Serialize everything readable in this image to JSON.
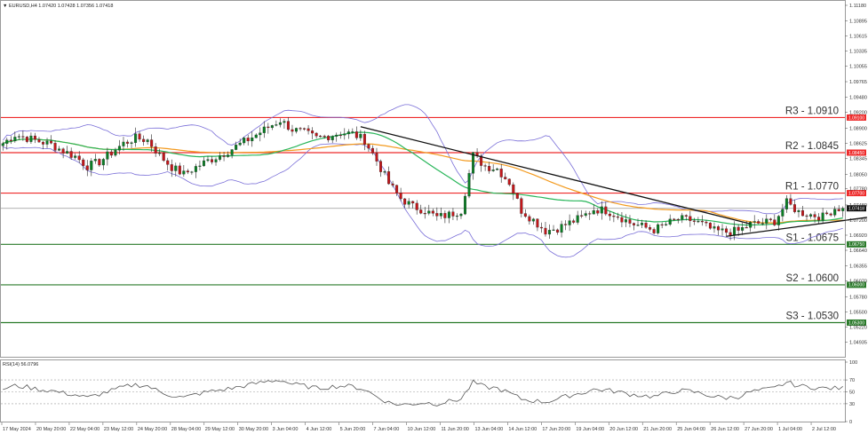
{
  "chart_header": {
    "triangle": "▼",
    "text": "EURUSD,H4  1.07420 1.07428 1.07356 1.07418"
  },
  "rsi_header": {
    "text": "RSI(14) 56.0796"
  },
  "colors": {
    "bull": "#0a7f25",
    "bear": "#c3161a",
    "resistance": "#ee2a2a",
    "support": "#2a7a2a",
    "bollinger": "#7a6fd8",
    "ma_fast": "#29b65a",
    "ma_slow": "#f39a1e",
    "trendline": "#111111",
    "current_price": "#999999",
    "rsi_line": "#555555"
  },
  "chart_data": [
    {
      "type": "candlestick",
      "symbol": "EURUSD",
      "timeframe": "H4",
      "ylim": [
        1.0465,
        1.1118
      ],
      "y_ticks": [
        "1.11180",
        "1.10895",
        "1.10615",
        "1.10335",
        "1.10055",
        "1.09765",
        "1.09480",
        "1.09200",
        "1.08900",
        "1.08625",
        "1.08345",
        "1.08050",
        "1.07780",
        "1.07480",
        "1.07200",
        "1.06920",
        "1.06640",
        "1.06355",
        "1.06070",
        "1.05780",
        "1.05500",
        "1.05220",
        "1.04935",
        "1.04650"
      ],
      "x_labels": [
        "17 May 2024",
        "20 May 20:00",
        "22 May 04:00",
        "23 May 12:00",
        "24 May 20:00",
        "28 May 04:00",
        "29 May 12:00",
        "30 May 20:00",
        "3 Jun 04:00",
        "4 Jun 12:00",
        "5 Jun 20:00",
        "7 Jun 04:00",
        "10 Jun 12:00",
        "11 Jun 20:00",
        "13 Jun 04:00",
        "14 Jun 12:00",
        "17 Jun 20:00",
        "19 Jun 04:00",
        "20 Jun 12:00",
        "21 Jun 20:00",
        "25 Jun 04:00",
        "26 Jun 12:00",
        "27 Jun 20:00",
        "1 Jul 04:00",
        "2 Jul 12:00"
      ],
      "levels": [
        {
          "name": "R3",
          "label": "R3 - 1.0910",
          "price": 1.091,
          "badge": "1.09100",
          "kind": "resistance"
        },
        {
          "name": "R2",
          "label": "R2 - 1.0845",
          "price": 1.0845,
          "badge": "1.08450",
          "kind": "resistance"
        },
        {
          "name": "R1",
          "label": "R1 - 1.0770",
          "price": 1.077,
          "badge": "1.07700",
          "kind": "resistance"
        },
        {
          "name": "S1",
          "label": "S1 - 1.0675",
          "price": 1.0675,
          "badge": "1.06750",
          "kind": "support"
        },
        {
          "name": "S2",
          "label": "S2 - 1.0600",
          "price": 1.06,
          "badge": "1.06000",
          "kind": "support"
        },
        {
          "name": "S3",
          "label": "S3 - 1.0530",
          "price": 1.053,
          "badge": "1.05300",
          "kind": "support"
        }
      ],
      "current_price": {
        "price": 1.07418,
        "badge": "1.07418"
      },
      "close_path": [
        [
          0,
          1.0862
        ],
        [
          3,
          1.0878
        ],
        [
          6,
          1.0872
        ],
        [
          9,
          1.0866
        ],
        [
          12,
          1.086
        ],
        [
          15,
          1.0848
        ],
        [
          18,
          1.0838
        ],
        [
          21,
          1.082
        ],
        [
          24,
          1.0828
        ],
        [
          27,
          1.0845
        ],
        [
          30,
          1.0862
        ],
        [
          33,
          1.0872
        ],
        [
          36,
          1.0868
        ],
        [
          39,
          1.084
        ],
        [
          42,
          1.0818
        ],
        [
          45,
          1.0805
        ],
        [
          48,
          1.0818
        ],
        [
          51,
          1.083
        ],
        [
          54,
          1.084
        ],
        [
          57,
          1.0852
        ],
        [
          60,
          1.0865
        ],
        [
          63,
          1.0878
        ],
        [
          66,
          1.0892
        ],
        [
          69,
          1.0905
        ],
        [
          72,
          1.0888
        ],
        [
          75,
          1.0882
        ],
        [
          78,
          1.0872
        ],
        [
          81,
          1.0876
        ],
        [
          84,
          1.0882
        ],
        [
          87,
          1.088
        ],
        [
          90,
          1.0868
        ],
        [
          93,
          1.083
        ],
        [
          96,
          1.0788
        ],
        [
          99,
          1.076
        ],
        [
          102,
          1.0745
        ],
        [
          105,
          1.0738
        ],
        [
          108,
          1.0725
        ],
        [
          111,
          1.073
        ],
        [
          114,
          1.0738
        ],
        [
          117,
          1.084
        ],
        [
          120,
          1.082
        ],
        [
          123,
          1.0815
        ],
        [
          126,
          1.079
        ],
        [
          129,
          1.0738
        ],
        [
          132,
          1.072
        ],
        [
          135,
          1.07
        ],
        [
          138,
          1.0705
        ],
        [
          141,
          1.0715
        ],
        [
          144,
          1.0725
        ],
        [
          147,
          1.074
        ],
        [
          150,
          1.0738
        ],
        [
          153,
          1.0728
        ],
        [
          156,
          1.0715
        ],
        [
          159,
          1.0708
        ],
        [
          162,
          1.0702
        ],
        [
          165,
          1.0712
        ],
        [
          168,
          1.0722
        ],
        [
          171,
          1.072
        ],
        [
          174,
          1.0712
        ],
        [
          177,
          1.07
        ],
        [
          180,
          1.0698
        ],
        [
          183,
          1.07
        ],
        [
          186,
          1.0712
        ],
        [
          189,
          1.0715
        ],
        [
          192,
          1.0718
        ],
        [
          195,
          1.0752
        ],
        [
          198,
          1.0735
        ],
        [
          201,
          1.073
        ],
        [
          204,
          1.0726
        ],
        [
          207,
          1.0742
        ]
      ],
      "trend_lines": [
        {
          "from": [
            89,
            1.0893
          ],
          "to": [
            186,
            1.0713
          ]
        },
        {
          "from": [
            180,
            1.069
          ],
          "to": [
            215,
            1.0725
          ]
        }
      ]
    },
    {
      "type": "line",
      "indicator": "RSI(14)",
      "ylim": [
        0,
        100
      ],
      "y_ticks": [
        "100",
        "70",
        "50",
        "30",
        "0"
      ],
      "levels": [
        70,
        50,
        30
      ],
      "rsi_path": [
        [
          0,
          55
        ],
        [
          3,
          60
        ],
        [
          6,
          58
        ],
        [
          9,
          54
        ],
        [
          12,
          52
        ],
        [
          15,
          48
        ],
        [
          18,
          45
        ],
        [
          21,
          40
        ],
        [
          24,
          46
        ],
        [
          27,
          52
        ],
        [
          30,
          58
        ],
        [
          33,
          62
        ],
        [
          36,
          60
        ],
        [
          39,
          50
        ],
        [
          42,
          44
        ],
        [
          45,
          40
        ],
        [
          48,
          46
        ],
        [
          51,
          50
        ],
        [
          54,
          53
        ],
        [
          57,
          56
        ],
        [
          60,
          60
        ],
        [
          63,
          64
        ],
        [
          66,
          68
        ],
        [
          69,
          70
        ],
        [
          72,
          63
        ],
        [
          75,
          60
        ],
        [
          78,
          56
        ],
        [
          81,
          58
        ],
        [
          84,
          60
        ],
        [
          87,
          59
        ],
        [
          90,
          54
        ],
        [
          93,
          42
        ],
        [
          96,
          32
        ],
        [
          99,
          28
        ],
        [
          102,
          30
        ],
        [
          105,
          32
        ],
        [
          108,
          30
        ],
        [
          111,
          34
        ],
        [
          114,
          38
        ],
        [
          117,
          66
        ],
        [
          120,
          58
        ],
        [
          123,
          56
        ],
        [
          126,
          48
        ],
        [
          129,
          38
        ],
        [
          132,
          35
        ],
        [
          135,
          33
        ],
        [
          138,
          38
        ],
        [
          141,
          44
        ],
        [
          144,
          48
        ],
        [
          147,
          54
        ],
        [
          150,
          53
        ],
        [
          153,
          50
        ],
        [
          156,
          46
        ],
        [
          159,
          44
        ],
        [
          162,
          42
        ],
        [
          165,
          47
        ],
        [
          168,
          52
        ],
        [
          171,
          51
        ],
        [
          174,
          47
        ],
        [
          177,
          42
        ],
        [
          180,
          40
        ],
        [
          183,
          42
        ],
        [
          186,
          50
        ],
        [
          189,
          53
        ],
        [
          192,
          56
        ],
        [
          195,
          66
        ],
        [
          198,
          60
        ],
        [
          201,
          58
        ],
        [
          204,
          56
        ],
        [
          207,
          56
        ]
      ]
    }
  ]
}
